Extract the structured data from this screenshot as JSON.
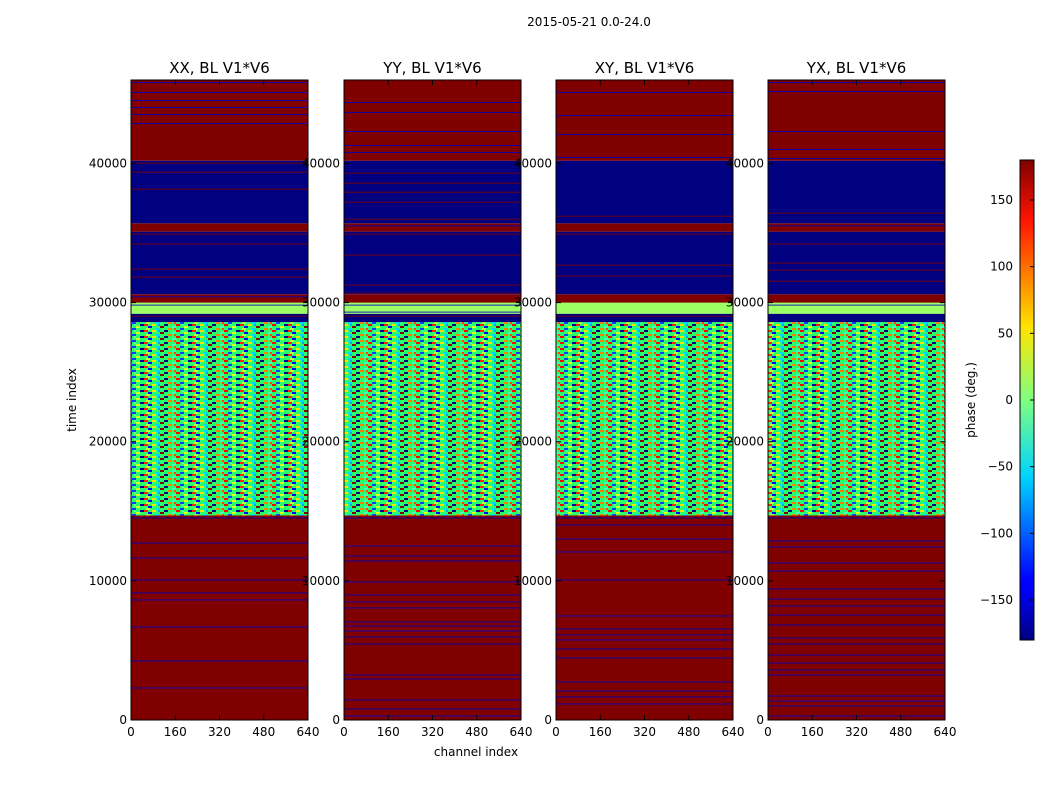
{
  "chart_data": {
    "type": "heatmap",
    "title": "2015-05-21 0.0-24.0",
    "ylabel": "time index",
    "xlabel": "channel index",
    "xlim": [
      0,
      640
    ],
    "ylim": [
      0,
      46000
    ],
    "xticks": [
      0,
      160,
      320,
      480,
      640
    ],
    "yticks": [
      0,
      10000,
      20000,
      30000,
      40000
    ],
    "panels": [
      {
        "title": "XX, BL V1*V6",
        "polarization": "XX"
      },
      {
        "title": "YY, BL V1*V6",
        "polarization": "YY"
      },
      {
        "title": "XY, BL V1*V6",
        "polarization": "XY"
      },
      {
        "title": "YX, BL V1*V6",
        "polarization": "YX"
      }
    ],
    "time_bands": [
      {
        "from": 0,
        "to": 14700,
        "pattern": "solid",
        "phase": 180
      },
      {
        "from": 14700,
        "to": 28600,
        "pattern": "noise",
        "phase": null
      },
      {
        "from": 28600,
        "to": 29200,
        "pattern": "solid",
        "phase": -180
      },
      {
        "from": 29200,
        "to": 30000,
        "pattern": "solid",
        "phase": 10
      },
      {
        "from": 30000,
        "to": 30600,
        "pattern": "solid",
        "phase": 180
      },
      {
        "from": 30600,
        "to": 35100,
        "pattern": "solid",
        "phase": -180
      },
      {
        "from": 35100,
        "to": 35700,
        "pattern": "solid",
        "phase": 180
      },
      {
        "from": 35700,
        "to": 40200,
        "pattern": "solid",
        "phase": -180
      },
      {
        "from": 40200,
        "to": 46000,
        "pattern": "solid",
        "phase": 180
      }
    ],
    "colorbar": {
      "label": "phase (deg.)",
      "range": [
        -180,
        180
      ],
      "ticks": [
        -150,
        -100,
        -50,
        0,
        50,
        100,
        150
      ],
      "tick_labels": [
        "−150",
        "−100",
        "−50",
        "0",
        "50",
        "100",
        "150"
      ],
      "colormap": "jet"
    }
  },
  "colors": {
    "jet_dark_red": "#800000",
    "jet_dark_blue": "#00007f",
    "stripe_blue": "#0000c0"
  }
}
